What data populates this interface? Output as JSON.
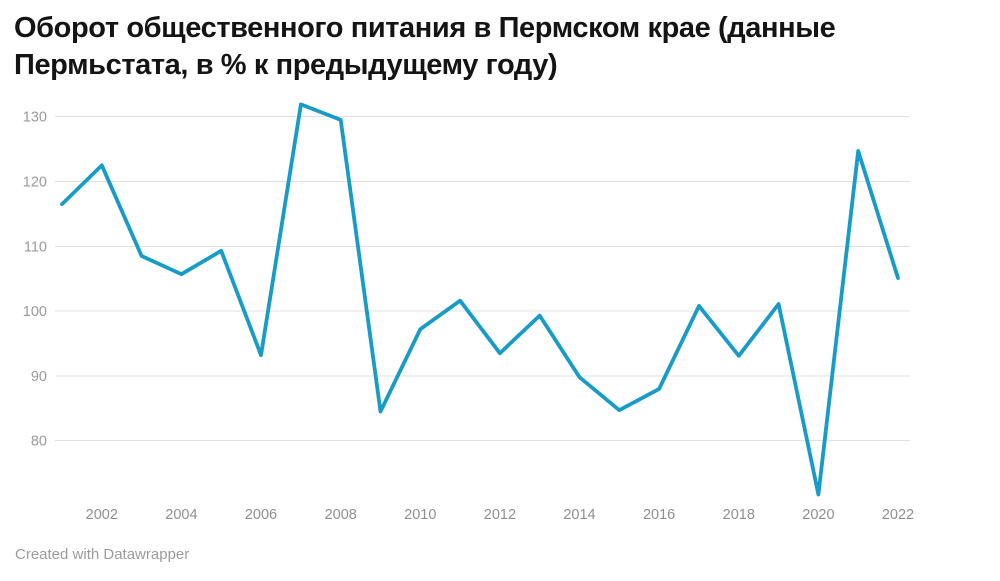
{
  "header": {
    "title_lines": [
      "Оборот общественного питания в Пермском крае (данные",
      "Пермьстата, в % к предыдущему году)"
    ]
  },
  "footer": {
    "credit": "Created with Datawrapper"
  },
  "colors": {
    "line": "#189cc7",
    "grid": "#e1e1e1",
    "axis_labels": "#9a9a9a",
    "title": "#141414",
    "credit": "#9c9c9c"
  },
  "chart_data": {
    "type": "line",
    "title": "Оборот общественного питания в Пермском крае (данные Пермьстата, в % к предыдущему году)",
    "x": [
      2001,
      2002,
      2003,
      2004,
      2005,
      2006,
      2007,
      2008,
      2009,
      2010,
      2011,
      2012,
      2013,
      2014,
      2015,
      2016,
      2017,
      2018,
      2019,
      2020,
      2021,
      2022
    ],
    "values": [
      116.5,
      122.5,
      108.5,
      105.7,
      109.3,
      93.2,
      131.9,
      129.5,
      84.5,
      97.2,
      101.6,
      93.5,
      99.3,
      89.8,
      84.7,
      88.0,
      100.8,
      93.1,
      101.1,
      71.7,
      124.7,
      105.1
    ],
    "y_ticks": [
      80,
      90,
      100,
      110,
      120,
      130
    ],
    "x_tick_labels": [
      2002,
      2004,
      2006,
      2008,
      2010,
      2012,
      2014,
      2016,
      2018,
      2020,
      2022
    ],
    "ylim": [
      71,
      133
    ],
    "xlim": [
      2001,
      2022
    ],
    "grid": true,
    "legend": false,
    "xlabel": "",
    "ylabel": "",
    "line_color": "#189cc7"
  }
}
